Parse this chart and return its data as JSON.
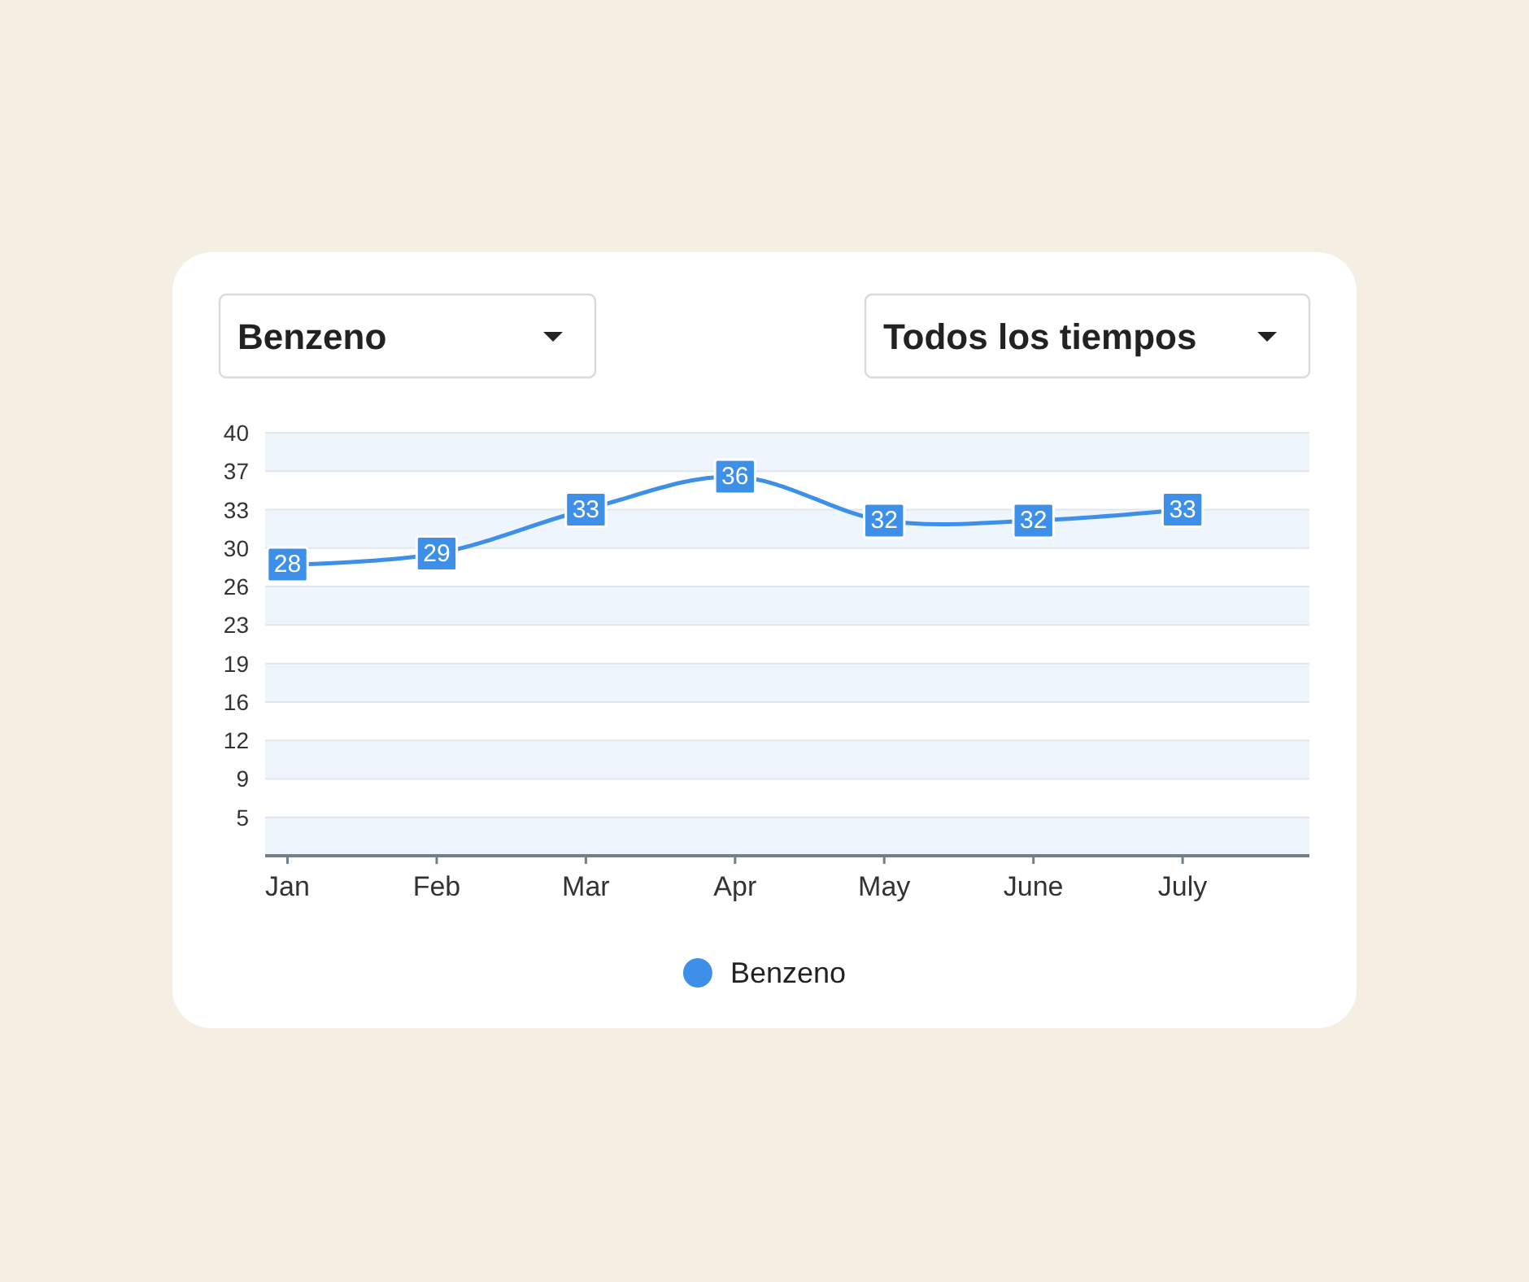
{
  "chart_data": {
    "type": "line",
    "categories": [
      "Jan",
      "Feb",
      "Mar",
      "Apr",
      "May",
      "June",
      "July"
    ],
    "series": [
      {
        "name": "Benzeno",
        "color": "#3d8fe8",
        "values": [
          28,
          29,
          33,
          36,
          32,
          32,
          33
        ]
      }
    ],
    "ylim": [
      1.5,
      40
    ],
    "yticks": [
      40,
      {
        "value": 36.5,
        "label": "37"
      },
      33,
      {
        "value": 29.5,
        "label": "30"
      },
      26,
      {
        "value": 22.5,
        "label": "23"
      },
      19,
      {
        "value": 15.5,
        "label": "16"
      },
      12,
      {
        "value": 8.5,
        "label": "9"
      },
      5
    ],
    "grid": "y",
    "legend": "bottom",
    "data_labels": true,
    "marker": "square",
    "annotations": [
      "Benzeno",
      "Todos los tiempos"
    ]
  }
}
